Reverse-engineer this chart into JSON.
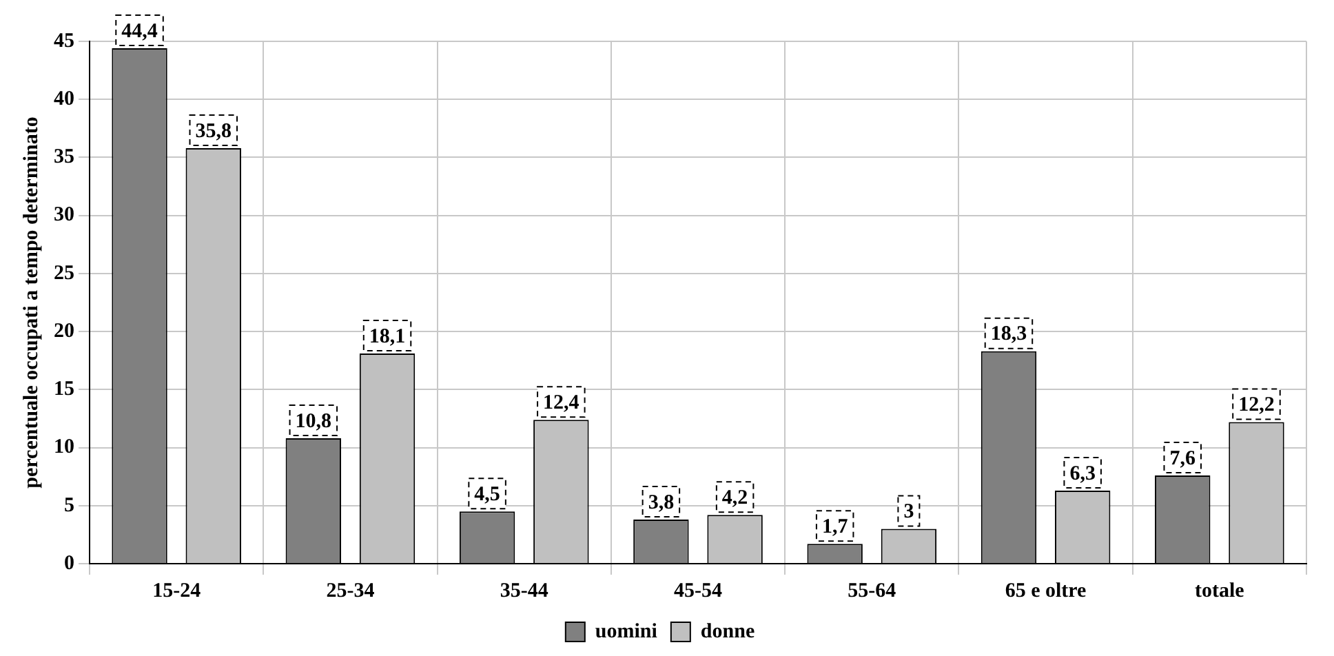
{
  "chart_data": {
    "type": "bar",
    "ylabel": "percentuale occupati a tempo determinato",
    "categories": [
      "15-24",
      "25-34",
      "35-44",
      "45-54",
      "55-64",
      "65 e oltre",
      "totale"
    ],
    "series": [
      {
        "name": "uomini",
        "color": "#808080",
        "values": [
          44.4,
          10.8,
          4.5,
          3.8,
          1.7,
          18.3,
          7.6
        ],
        "value_labels": [
          "44,4",
          "10,8",
          "4,5",
          "3,8",
          "1,7",
          "18,3",
          "7,6"
        ]
      },
      {
        "name": "donne",
        "color": "#c0c0c0",
        "values": [
          35.8,
          18.1,
          12.4,
          4.2,
          3,
          6.3,
          12.2
        ],
        "value_labels": [
          "35,8",
          "18,1",
          "12,4",
          "4,2",
          "3",
          "6,3",
          "12,2"
        ]
      }
    ],
    "ylim": [
      0,
      45
    ],
    "yticks": [
      0,
      5,
      10,
      15,
      20,
      25,
      30,
      35,
      40,
      45
    ],
    "grid": true,
    "legend": "bottom"
  }
}
